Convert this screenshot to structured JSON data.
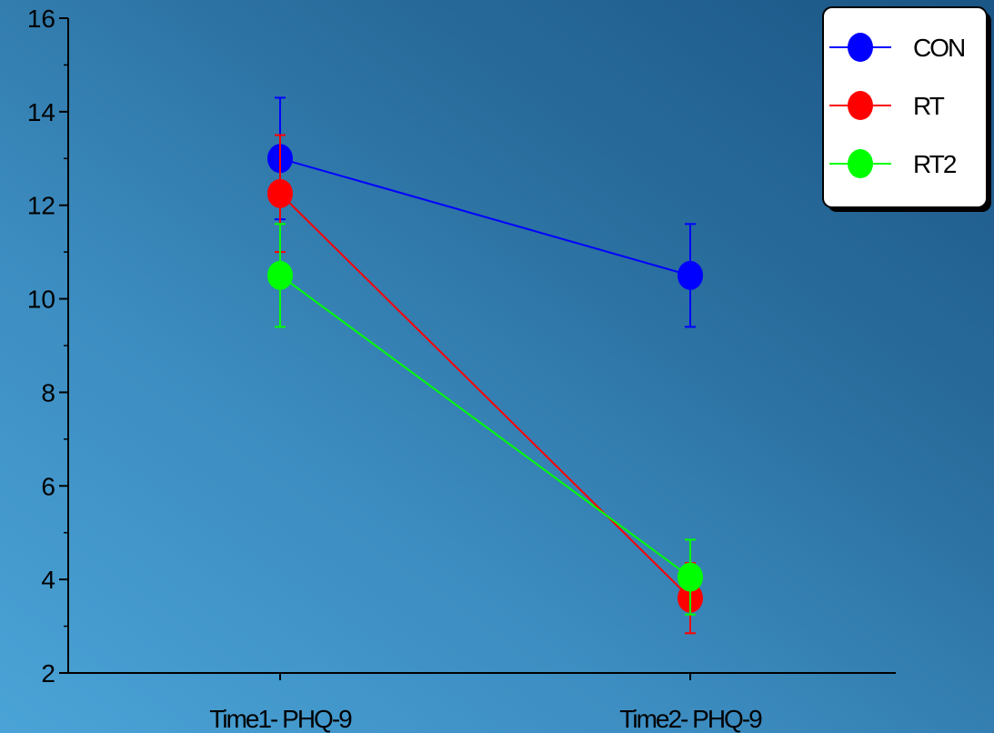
{
  "chart_data": {
    "type": "line",
    "categories": [
      "Time1- PHQ-9",
      "Time2- PHQ-9"
    ],
    "ylim": [
      2,
      16
    ],
    "yticks": [
      2,
      4,
      6,
      8,
      10,
      12,
      14,
      16
    ],
    "grid": false,
    "legend_position": "top-right",
    "series": [
      {
        "name": "CON",
        "color": "#0000ff",
        "values": [
          13.0,
          10.5
        ],
        "error": [
          1.3,
          1.1
        ]
      },
      {
        "name": "RT",
        "color": "#ff0000",
        "values": [
          12.25,
          3.6
        ],
        "error": [
          1.25,
          0.75
        ]
      },
      {
        "name": "RT2",
        "color": "#00ff00",
        "values": [
          10.5,
          4.05
        ],
        "error": [
          1.1,
          0.8
        ]
      }
    ]
  }
}
